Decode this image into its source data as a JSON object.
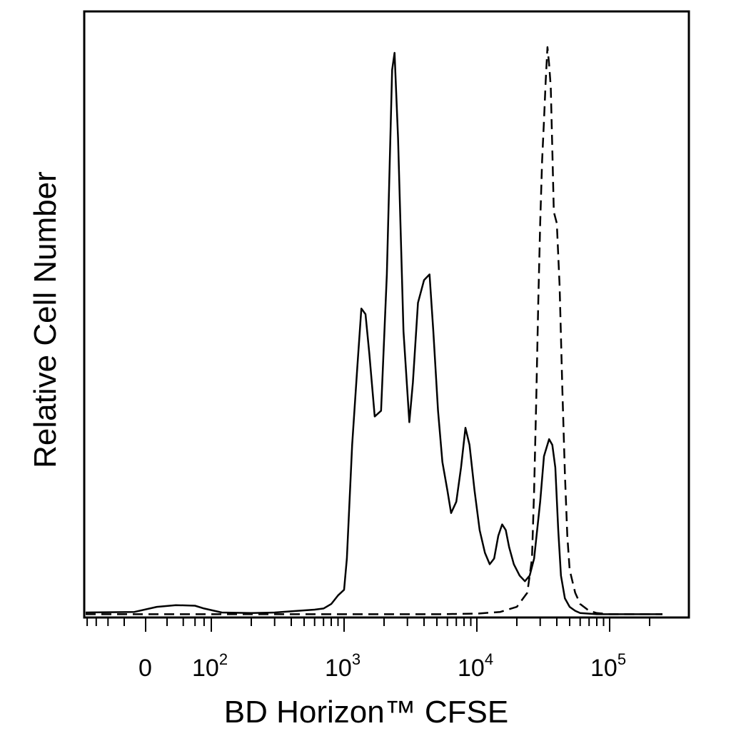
{
  "chart_data": {
    "type": "line",
    "title": "",
    "xlabel": "BD Horizon™ CFSE",
    "ylabel": "Relative Cell Number",
    "x_scale": "biexponential",
    "xlim": [
      -110,
      250000
    ],
    "ylim": [
      0,
      1
    ],
    "grid": false,
    "legend": "none",
    "x_ticks": [
      {
        "value": 0,
        "base": "0",
        "exp": ""
      },
      {
        "value": 100,
        "base": "10",
        "exp": "2"
      },
      {
        "value": 1000,
        "base": "10",
        "exp": "3"
      },
      {
        "value": 10000,
        "base": "10",
        "exp": "4"
      },
      {
        "value": 100000,
        "base": "10",
        "exp": "5"
      }
    ],
    "series": [
      {
        "style": "solid",
        "color": "#000000",
        "x": [
          -110,
          -10,
          10,
          30,
          60,
          80,
          120,
          200,
          300,
          450,
          600,
          700,
          800,
          900,
          1000,
          1050,
          1150,
          1260,
          1350,
          1450,
          1550,
          1700,
          1900,
          2100,
          2300,
          2400,
          2550,
          2800,
          3100,
          3300,
          3600,
          4000,
          4400,
          4700,
          5100,
          5500,
          6000,
          6400,
          7000,
          7600,
          8200,
          8800,
          9600,
          10500,
          11500,
          12500,
          13500,
          14500,
          15500,
          16500,
          17500,
          19000,
          21000,
          23000,
          25000,
          27000,
          30000,
          32000,
          35000,
          37000,
          39000,
          41000,
          43000,
          46000,
          50000,
          55000,
          60000,
          70000,
          80000,
          100000,
          150000,
          250000
        ],
        "y": [
          0.005,
          0.006,
          0.015,
          0.018,
          0.017,
          0.012,
          0.005,
          0.004,
          0.005,
          0.008,
          0.01,
          0.012,
          0.02,
          0.035,
          0.045,
          0.1,
          0.3,
          0.44,
          0.54,
          0.53,
          0.46,
          0.35,
          0.36,
          0.6,
          0.96,
          0.99,
          0.84,
          0.5,
          0.34,
          0.41,
          0.55,
          0.59,
          0.6,
          0.5,
          0.36,
          0.27,
          0.22,
          0.18,
          0.2,
          0.26,
          0.33,
          0.3,
          0.22,
          0.15,
          0.11,
          0.09,
          0.1,
          0.14,
          0.16,
          0.15,
          0.12,
          0.09,
          0.07,
          0.06,
          0.07,
          0.1,
          0.2,
          0.28,
          0.31,
          0.3,
          0.26,
          0.15,
          0.07,
          0.03,
          0.015,
          0.008,
          0.004,
          0.003,
          0.002,
          0.002,
          0.002,
          0.002
        ]
      },
      {
        "style": "dashed",
        "color": "#000000",
        "x": [
          -110,
          100,
          500,
          1000,
          2000,
          5000,
          10000,
          15000,
          20000,
          24000,
          26000,
          27000,
          28000,
          29000,
          30000,
          31000,
          32000,
          33000,
          34000,
          35000,
          36000,
          37000,
          38000,
          40000,
          42000,
          44000,
          46000,
          48000,
          50000,
          55000,
          60000,
          70000,
          80000,
          100000,
          250000
        ],
        "y": [
          0.002,
          0.002,
          0.002,
          0.002,
          0.002,
          0.002,
          0.003,
          0.006,
          0.015,
          0.04,
          0.1,
          0.22,
          0.38,
          0.55,
          0.69,
          0.8,
          0.87,
          0.94,
          1.0,
          0.97,
          0.93,
          0.82,
          0.71,
          0.69,
          0.58,
          0.4,
          0.25,
          0.14,
          0.08,
          0.04,
          0.02,
          0.008,
          0.004,
          0.002,
          0.002
        ]
      }
    ]
  }
}
